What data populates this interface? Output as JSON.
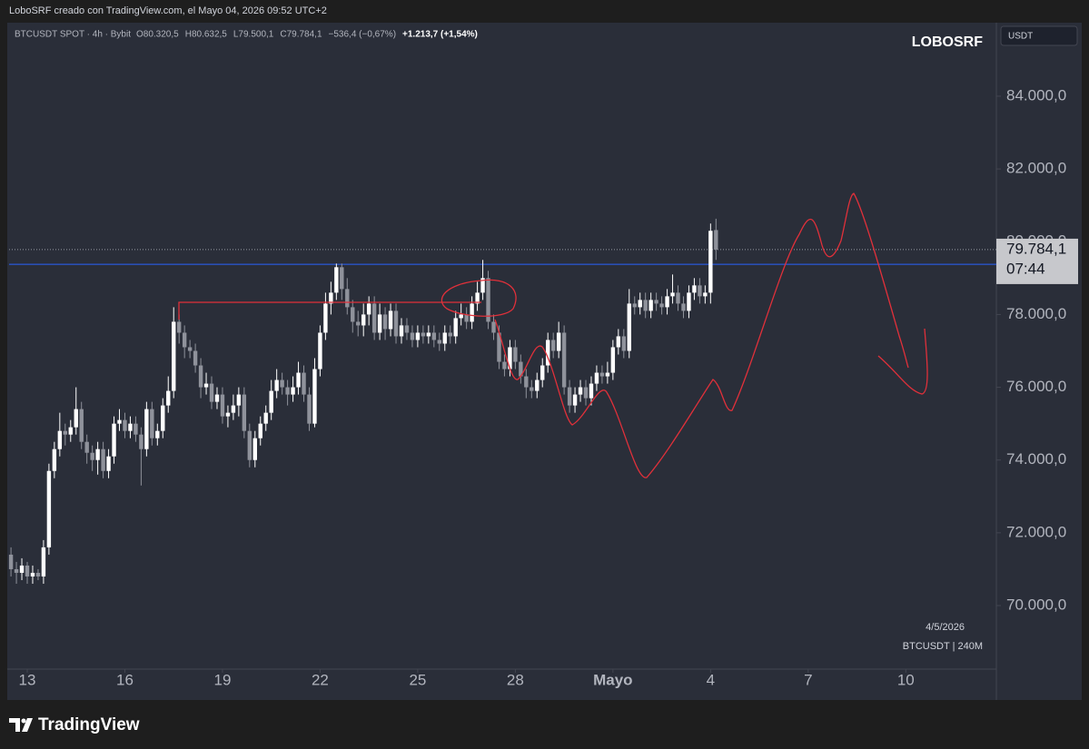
{
  "chart_data": {
    "type": "candlestick",
    "top_bar": "LoboSRF creado con TradingView.com, el Mayo 04, 2026 09:52 UTC+2",
    "symbol_line": "BTCUSDT SPOT · 4h · Bybit",
    "ohlc_legend": [
      "O80.320,5",
      "H80.632,5",
      "L79.500,1",
      "C79.784,1",
      "−536,4 (−0,67%)"
    ],
    "change_label": "+1.213,7 (+1,54%)",
    "author": "LOBOSRF",
    "currency": "USDT",
    "date_note": "4/5/2026",
    "interval_note": "BTCUSDT | 240M",
    "brand": "TradingView",
    "up_color": "#ffffff",
    "down_color": "#8f929b",
    "grid": false,
    "price_label": {
      "value": 79784.1,
      "label": "79.784,1"
    },
    "countdown": "07:44",
    "horizontal_line": {
      "value": 79380,
      "color": "#2962ff"
    },
    "xlim": [
      -3.35,
      178.7
    ],
    "xticks": [
      {
        "value": 0,
        "label": "13"
      },
      {
        "value": 18,
        "label": "16"
      },
      {
        "value": 36,
        "label": "19"
      },
      {
        "value": 54,
        "label": "22"
      },
      {
        "value": 72,
        "label": "25"
      },
      {
        "value": 90,
        "label": "28"
      },
      {
        "value": 108,
        "label": "Mayo"
      },
      {
        "value": 126,
        "label": "4"
      },
      {
        "value": 144,
        "label": "7"
      },
      {
        "value": 162,
        "label": "10"
      }
    ],
    "ylim": [
      68254,
      86020
    ],
    "yticks": [
      {
        "value": 70000,
        "label": "70.000,0"
      },
      {
        "value": 72000,
        "label": "72.000,0"
      },
      {
        "value": 74000,
        "label": "74.000,0"
      },
      {
        "value": 76000,
        "label": "76.000,0"
      },
      {
        "value": 78000,
        "label": "78.000,0"
      },
      {
        "value": 80000,
        "label": "80.000,0"
      },
      {
        "value": 82000,
        "label": "82.000,0"
      },
      {
        "value": 84000,
        "label": "84.000,0"
      }
    ],
    "x": [
      -3,
      -2,
      -1,
      0,
      1,
      2,
      3,
      4,
      5,
      6,
      7,
      8,
      9,
      10,
      11,
      12,
      13,
      14,
      15,
      16,
      17,
      18,
      19,
      20,
      21,
      22,
      23,
      24,
      25,
      26,
      27,
      28,
      29,
      30,
      31,
      32,
      33,
      34,
      35,
      36,
      37,
      38,
      39,
      40,
      41,
      42,
      43,
      44,
      45,
      46,
      47,
      48,
      49,
      50,
      51,
      52,
      53,
      54,
      55,
      56,
      57,
      58,
      59,
      60,
      61,
      62,
      63,
      64,
      65,
      66,
      67,
      68,
      69,
      70,
      71,
      72,
      73,
      74,
      75,
      76,
      77,
      78,
      79,
      80,
      81,
      82,
      83,
      84,
      85,
      86,
      87,
      88,
      89,
      90,
      91,
      92,
      93,
      94,
      95,
      96,
      97,
      98,
      99,
      100,
      101,
      102,
      103,
      104,
      105,
      106,
      107,
      108,
      109,
      110,
      111,
      112,
      113,
      114,
      115,
      116,
      117,
      118,
      119,
      120,
      121,
      122,
      123,
      124,
      125,
      126,
      127
    ],
    "open": [
      71400,
      71000,
      70900,
      71100,
      70800,
      70900,
      70800,
      71600,
      73700,
      74300,
      74800,
      74700,
      74900,
      75400,
      74500,
      74200,
      74000,
      74300,
      73700,
      74100,
      75000,
      75100,
      74800,
      75000,
      74700,
      74300,
      75400,
      74600,
      74800,
      75500,
      75900,
      77800,
      77500,
      77100,
      77000,
      76600,
      76000,
      76100,
      75600,
      75800,
      75200,
      75300,
      75500,
      75800,
      74800,
      74000,
      74600,
      75000,
      75300,
      75900,
      76200,
      76000,
      75800,
      76000,
      76400,
      75800,
      75000,
      76500,
      77500,
      78300,
      78600,
      79300,
      78700,
      78200,
      77800,
      77700,
      78000,
      78300,
      77500,
      78000,
      77600,
      78100,
      77400,
      77700,
      77500,
      77300,
      77500,
      77400,
      77500,
      77300,
      77200,
      77500,
      77400,
      77900,
      78000,
      77800,
      78300,
      78600,
      79000,
      77800,
      77500,
      76700,
      76500,
      77100,
      76700,
      76300,
      76000,
      75900,
      76200,
      76600,
      77300,
      77000,
      77500,
      76000,
      75500,
      75800,
      76000,
      75700,
      76100,
      76400,
      76300,
      76400,
      77100,
      77400,
      77000,
      78300,
      78200,
      78400,
      78100,
      78400,
      78300,
      78200,
      78500,
      78600,
      78300,
      78100,
      78600,
      78800,
      78500,
      78600,
      80320.5
    ],
    "high": [
      71600,
      71200,
      71300,
      71200,
      71100,
      71000,
      71800,
      73900,
      74500,
      75300,
      75000,
      75100,
      76000,
      75600,
      74700,
      74400,
      74500,
      74500,
      74300,
      75200,
      75400,
      75300,
      75200,
      75200,
      74900,
      75600,
      75600,
      75000,
      75700,
      76300,
      78200,
      78000,
      77700,
      77300,
      77200,
      76800,
      76400,
      76300,
      76000,
      76000,
      75500,
      75800,
      76000,
      76000,
      75000,
      74800,
      75200,
      75500,
      76200,
      76500,
      76400,
      76200,
      76300,
      76700,
      76600,
      76000,
      76800,
      77700,
      78600,
      78900,
      79400,
      79400,
      79000,
      78400,
      78100,
      78300,
      78500,
      78500,
      78300,
      78200,
      78300,
      78300,
      77900,
      77900,
      77700,
      77700,
      77700,
      77700,
      77700,
      77500,
      77700,
      77700,
      78100,
      78300,
      78200,
      78500,
      78900,
      79500,
      79200,
      78000,
      77700,
      76900,
      77300,
      77300,
      76900,
      76500,
      76200,
      76400,
      76800,
      77500,
      77500,
      77800,
      77700,
      76200,
      76000,
      76200,
      76200,
      76300,
      76600,
      76600,
      76700,
      77300,
      77600,
      77600,
      78700,
      78500,
      78600,
      78600,
      78600,
      78600,
      78500,
      78700,
      79100,
      78800,
      78500,
      78800,
      79000,
      79000,
      78800,
      80500,
      80632.5
    ],
    "low": [
      70800,
      70600,
      70700,
      70600,
      70600,
      70700,
      70600,
      71400,
      73500,
      74100,
      74400,
      74500,
      74700,
      74300,
      73900,
      73700,
      73600,
      73500,
      73500,
      73900,
      74800,
      74600,
      74600,
      74500,
      73300,
      74100,
      74400,
      74400,
      74600,
      75300,
      75700,
      77200,
      76800,
      76800,
      76400,
      75700,
      75800,
      75400,
      75400,
      75000,
      74900,
      75100,
      75200,
      74600,
      73800,
      73800,
      74400,
      74800,
      75100,
      75700,
      75800,
      75500,
      75600,
      75800,
      75600,
      74800,
      74900,
      76300,
      77300,
      78000,
      78400,
      78400,
      78000,
      77500,
      77400,
      77400,
      77700,
      77300,
      77300,
      77300,
      77400,
      77200,
      77200,
      77300,
      77100,
      77100,
      77200,
      77200,
      77100,
      77000,
      77000,
      77200,
      77200,
      77700,
      77600,
      77600,
      78100,
      78400,
      77600,
      77300,
      76500,
      76300,
      76300,
      76500,
      76100,
      75700,
      75700,
      75700,
      76000,
      76400,
      76800,
      76800,
      75800,
      75300,
      75300,
      75600,
      75500,
      75500,
      75900,
      76100,
      76100,
      76200,
      76900,
      76800,
      76800,
      78000,
      78000,
      77900,
      77900,
      78100,
      78000,
      78000,
      78300,
      78100,
      77900,
      77900,
      78400,
      78300,
      78300,
      78300,
      79500.1
    ],
    "close": [
      71000,
      70900,
      71100,
      70800,
      70900,
      70800,
      71600,
      73700,
      74300,
      74800,
      74700,
      74900,
      75400,
      74500,
      74200,
      74000,
      74300,
      73700,
      74100,
      75000,
      75100,
      74800,
      75000,
      74700,
      74300,
      75400,
      74600,
      74800,
      75500,
      75900,
      77800,
      77500,
      77100,
      77000,
      76600,
      76000,
      76100,
      75600,
      75800,
      75200,
      75300,
      75500,
      75800,
      74800,
      74000,
      74600,
      75000,
      75300,
      75900,
      76200,
      76000,
      75800,
      76000,
      76400,
      75800,
      75000,
      76500,
      77500,
      78300,
      78600,
      79300,
      78700,
      78200,
      77800,
      77700,
      78000,
      78300,
      77500,
      78000,
      77600,
      78100,
      77400,
      77700,
      77500,
      77300,
      77500,
      77400,
      77500,
      77300,
      77200,
      77500,
      77400,
      77900,
      78000,
      77800,
      78300,
      78600,
      79000,
      77800,
      77500,
      76700,
      76500,
      77100,
      76700,
      76300,
      76000,
      75900,
      76200,
      76600,
      77300,
      77000,
      77500,
      76000,
      75500,
      75800,
      76000,
      75700,
      76100,
      76400,
      76300,
      76400,
      77100,
      77400,
      77000,
      78300,
      78200,
      78400,
      78100,
      78400,
      78300,
      78200,
      78500,
      78600,
      78300,
      78100,
      78600,
      78800,
      78500,
      78600,
      80300,
      79784.1
    ]
  }
}
